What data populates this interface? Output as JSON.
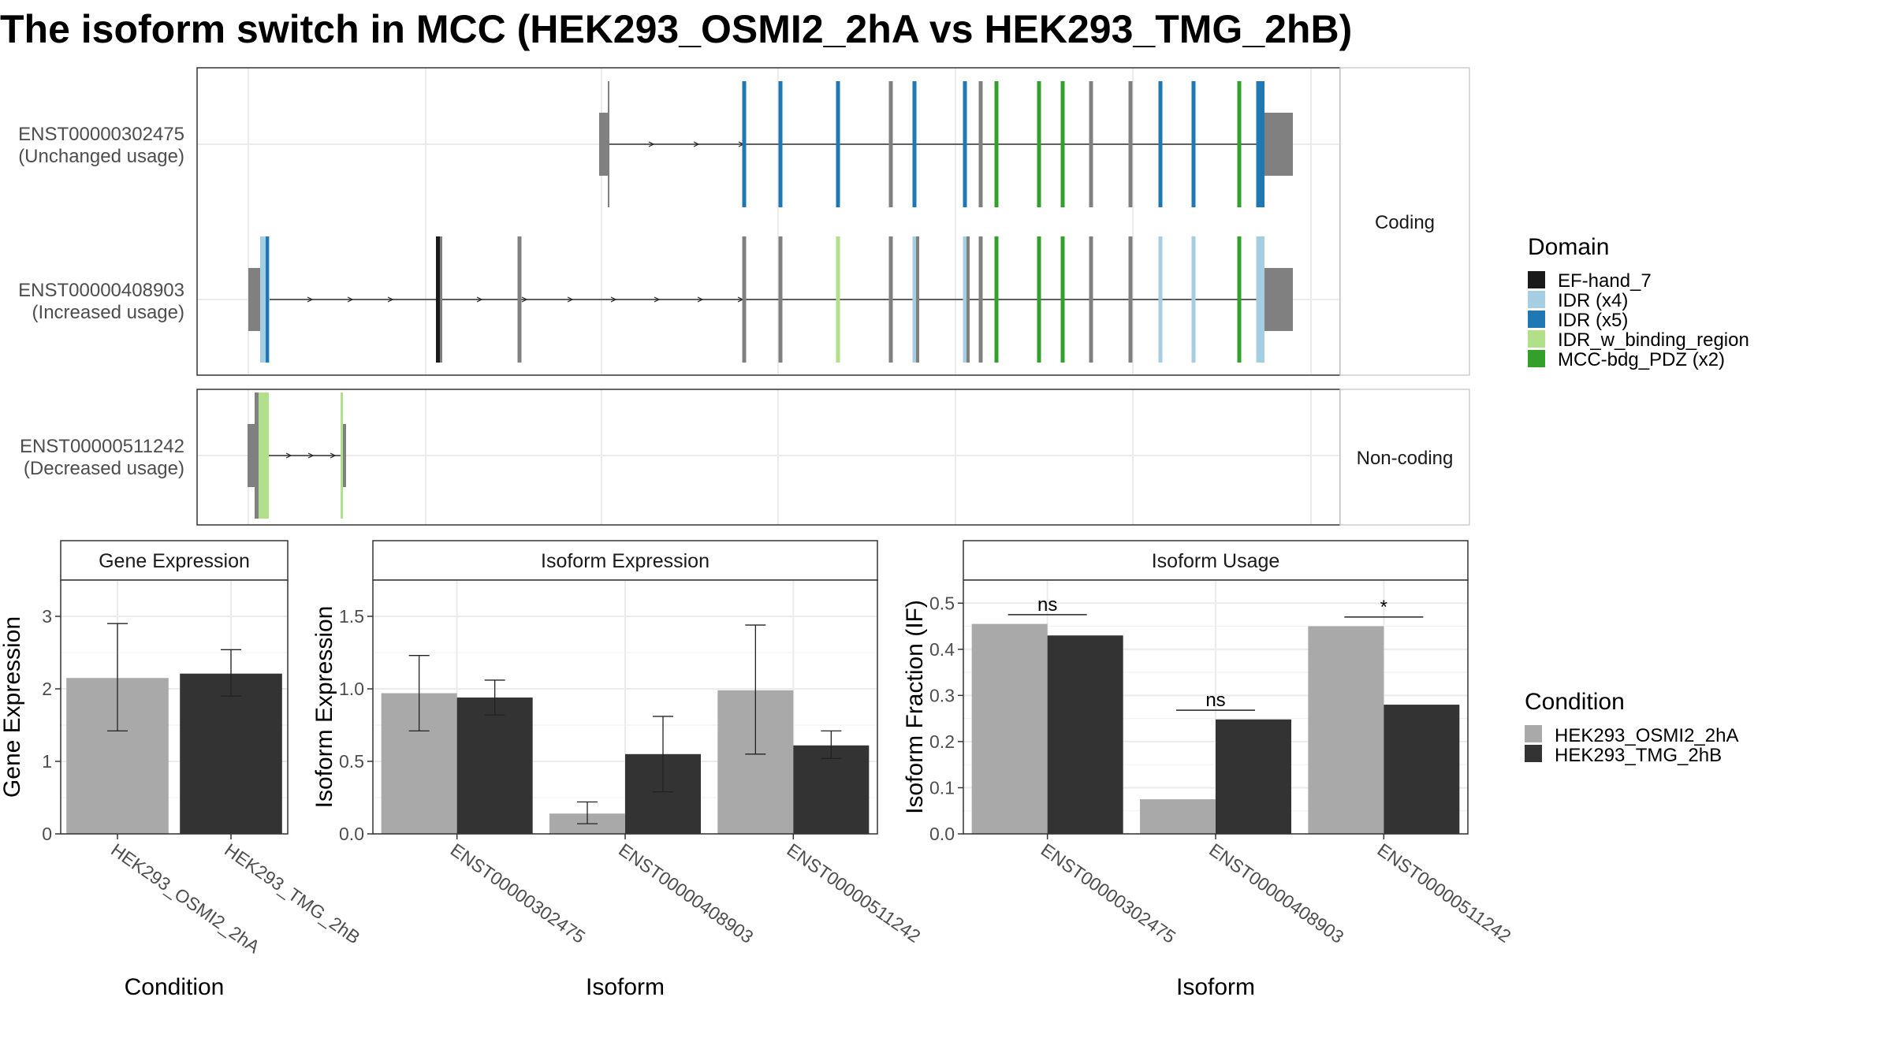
{
  "title": "The isoform switch in MCC (HEK293_OSMI2_2hA vs HEK293_TMG_2hB)",
  "colors": {
    "cond_A": "#A9A9A9",
    "cond_B": "#333333",
    "exon": "#808080",
    "EF-hand_7": "#1A1A1A",
    "IDR (x4)": "#A6CEE3",
    "IDR (x5)": "#1F78B4",
    "IDR_w_binding_region": "#B2DF8A",
    "MCC-bdg_PDZ (x2)": "#33A02C"
  },
  "transcript_panel": {
    "facets": [
      "Coding",
      "Non-coding"
    ],
    "transcripts": [
      {
        "id": "ENST00000302475",
        "usage": "(Unchanged usage)",
        "facet": "Coding"
      },
      {
        "id": "ENST00000408903",
        "usage": "(Increased usage)",
        "facet": "Coding"
      },
      {
        "id": "ENST00000511242",
        "usage": "(Decreased usage)",
        "facet": "Non-coding"
      }
    ]
  },
  "legend_domain": {
    "title": "Domain",
    "items": [
      "EF-hand_7",
      "IDR (x4)",
      "IDR (x5)",
      "IDR_w_binding_region",
      "MCC-bdg_PDZ (x2)"
    ]
  },
  "legend_condition": {
    "title": "Condition",
    "items": [
      "HEK293_OSMI2_2hA",
      "HEK293_TMG_2hB"
    ]
  },
  "chart_data": [
    {
      "type": "bar",
      "title": "Gene Expression",
      "xlabel": "Condition",
      "ylabel": "Gene Expression",
      "categories": [
        "HEK293_OSMI2_2hA",
        "HEK293_TMG_2hB"
      ],
      "values": [
        2.15,
        2.21
      ],
      "error_low": [
        1.42,
        1.9
      ],
      "error_high": [
        2.9,
        2.54
      ],
      "ylim": [
        0,
        3.5
      ],
      "yticks": [
        0,
        1,
        2,
        3
      ]
    },
    {
      "type": "bar",
      "title": "Isoform Expression",
      "xlabel": "Isoform",
      "ylabel": "Isoform Expression",
      "categories": [
        "ENST00000302475",
        "ENST00000408903",
        "ENST00000511242"
      ],
      "series": [
        {
          "name": "HEK293_OSMI2_2hA",
          "values": [
            0.97,
            0.14,
            0.99
          ],
          "error_low": [
            0.71,
            0.07,
            0.55
          ],
          "error_high": [
            1.23,
            0.22,
            1.44
          ]
        },
        {
          "name": "HEK293_TMG_2hB",
          "values": [
            0.94,
            0.55,
            0.61
          ],
          "error_low": [
            0.82,
            0.29,
            0.52
          ],
          "error_high": [
            1.06,
            0.81,
            0.71
          ]
        }
      ],
      "ylim": [
        0,
        1.75
      ],
      "yticks": [
        0.0,
        0.5,
        1.0,
        1.5
      ]
    },
    {
      "type": "bar",
      "title": "Isoform Usage",
      "xlabel": "Isoform",
      "ylabel": "Isoform Fraction (IF)",
      "categories": [
        "ENST00000302475",
        "ENST00000408903",
        "ENST00000511242"
      ],
      "series": [
        {
          "name": "HEK293_OSMI2_2hA",
          "values": [
            0.455,
            0.075,
            0.45
          ]
        },
        {
          "name": "HEK293_TMG_2hB",
          "values": [
            0.43,
            0.248,
            0.28
          ]
        }
      ],
      "significance": [
        "ns",
        "ns",
        "*"
      ],
      "ylim": [
        0,
        0.55
      ],
      "yticks": [
        0.0,
        0.1,
        0.2,
        0.3,
        0.4,
        0.5
      ]
    }
  ]
}
